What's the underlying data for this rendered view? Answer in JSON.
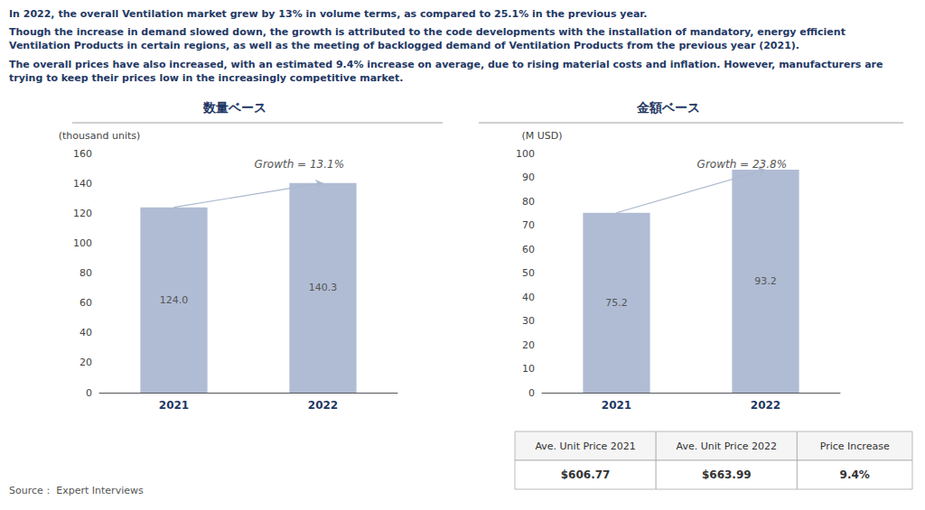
{
  "chart_data": [
    {
      "type": "bar",
      "title": "数量ベース",
      "ylabel": "(thousand units)",
      "annotations": [
        "Growth = 13.1%"
      ],
      "categories": [
        "2021",
        "2022"
      ],
      "values": [
        124.0,
        140.3
      ],
      "value_labels": [
        "124.0",
        "140.3"
      ],
      "color": "#b0bcd4",
      "ylim": [
        0,
        160
      ],
      "yticks": [
        0,
        20,
        40,
        60,
        80,
        100,
        120,
        140,
        160
      ],
      "grid": false,
      "data_labels": true
    },
    {
      "type": "bar",
      "title": "金額ベース",
      "ylabel": "(M USD)",
      "annotations": [
        "Growth = 23.8%"
      ],
      "categories": [
        "2021",
        "2022"
      ],
      "values": [
        75.2,
        93.2
      ],
      "color": "#b0bcd4",
      "ylim": [
        0,
        100
      ],
      "yticks": [
        0,
        10,
        20,
        30,
        40,
        50,
        60,
        70,
        80,
        90,
        100
      ],
      "grid": false,
      "data_labels": true
    }
  ],
  "paragraphs": [
    "In 2022, the overall Ventilation market grew by 13% in volume terms, as compared to 25.1% in the previous year.",
    "Though the increase in demand slowed down, the growth is attributed to the code developments with the installation of mandatory, energy efficient Ventilation Products in certain regions, as well as the meeting of backlogged demand of Ventilation Products from the previous year (2021).",
    "The overall prices have also increased, with an estimated 9.4% increase on average, due to rising material costs and inflation. However, manufacturers are trying to keep their prices low in the increasingly competitive market."
  ],
  "table": {
    "headers": [
      "Ave. Unit Price 2021",
      "Ave. Unit Price 2022",
      "Price Increase"
    ],
    "values": [
      "$606.77",
      "$663.99",
      "9.4%"
    ]
  },
  "source": "Source： Expert Interviews"
}
